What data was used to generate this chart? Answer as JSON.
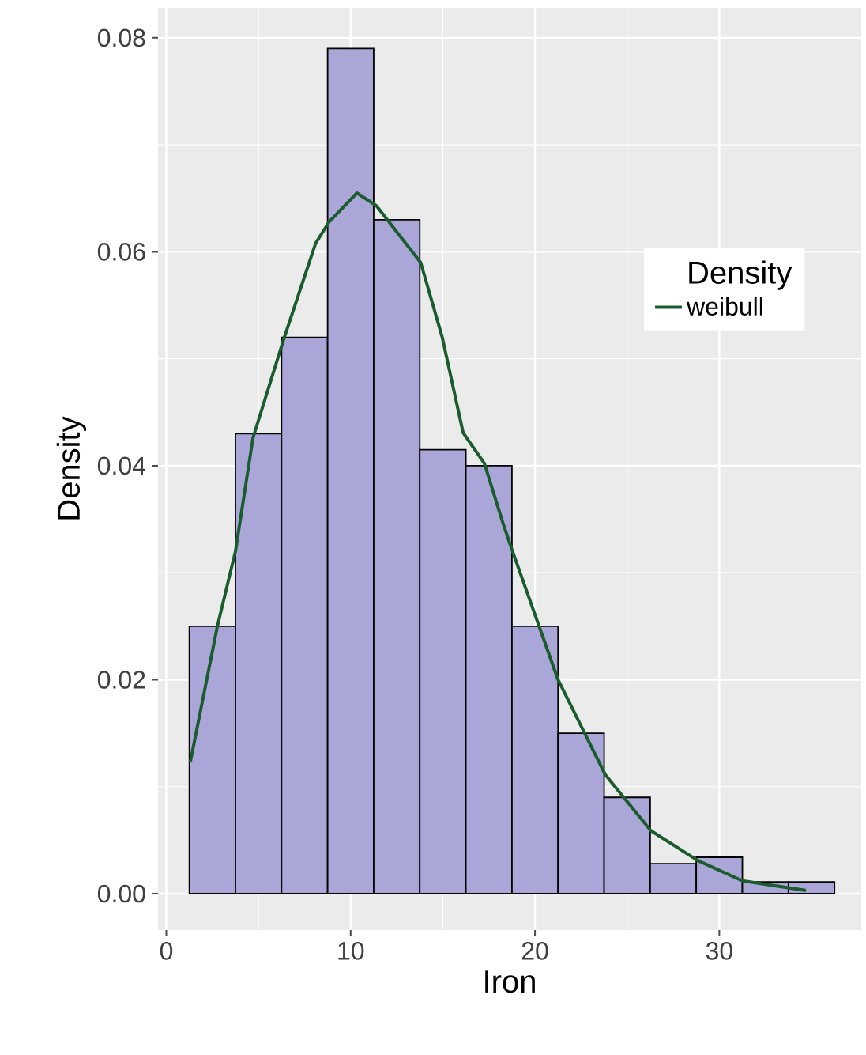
{
  "chart_data": {
    "type": "histogram",
    "xlabel": "Iron",
    "ylabel": "Density",
    "legend_title": "Density",
    "bins": [
      1.25,
      3.75,
      6.25,
      8.75,
      11.25,
      13.75,
      16.25,
      18.75,
      21.25,
      23.75,
      26.25,
      28.75,
      31.25,
      33.75,
      36.25
    ],
    "values": [
      0.025,
      0.043,
      0.052,
      0.079,
      0.063,
      0.0415,
      0.04,
      0.025,
      0.015,
      0.009,
      0.0028,
      0.0034,
      0.0011,
      0.0011
    ],
    "color": "#aaa7d8",
    "series": [
      {
        "type": "line",
        "name": "weibull",
        "color": "#1a5c2e",
        "x": [
          1.3,
          2.77,
          3.75,
          4.7,
          6.4,
          8.1,
          8.83,
          10.34,
          11.4,
          13.8,
          14.97,
          16.1,
          17.26,
          18.25,
          18.68,
          21.25,
          23.82,
          26.28,
          28.83,
          31.25,
          34.7
        ],
        "values": [
          0.0123,
          0.025,
          0.032,
          0.0426,
          0.052,
          0.0608,
          0.0628,
          0.0655,
          0.0643,
          0.059,
          0.052,
          0.0431,
          0.0402,
          0.0347,
          0.0325,
          0.02,
          0.0111,
          0.0059,
          0.0031,
          0.0012,
          0.0003
        ]
      }
    ],
    "xlim": [
      -0.45,
      37.7
    ],
    "ylim": [
      -0.0034,
      0.0828
    ],
    "xticks": [
      0,
      10,
      20,
      30
    ],
    "yticks": [
      {
        "value": 0,
        "label": "0.00"
      },
      {
        "value": 0.02,
        "label": "0.02"
      },
      {
        "value": 0.04,
        "label": "0.04"
      },
      {
        "value": 0.06,
        "label": "0.06"
      },
      {
        "value": 0.08,
        "label": "0.08"
      }
    ],
    "grid": true,
    "legend": "right"
  }
}
